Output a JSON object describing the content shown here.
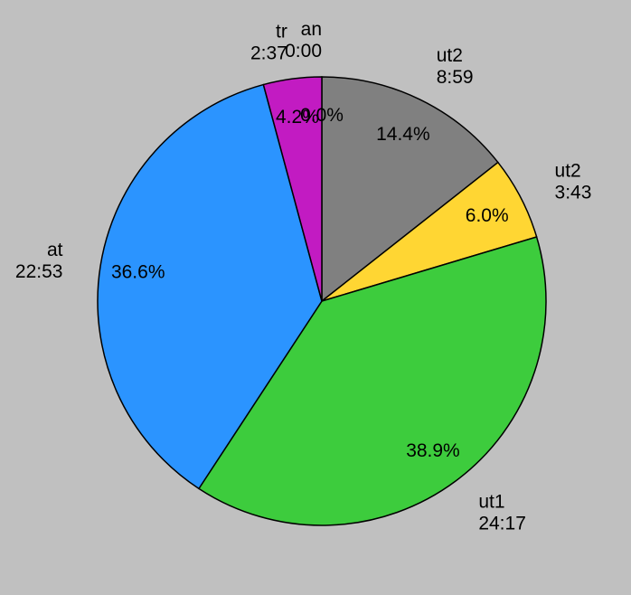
{
  "chart_data": {
    "type": "pie",
    "labels": [
      "an",
      "ut2",
      "ut2",
      "ut1",
      "at",
      "tr"
    ],
    "durations": [
      "0:00",
      "8:59",
      "3:43",
      "24:17",
      "22:53",
      "2:37"
    ],
    "values": [
      0.0,
      14.4,
      6.0,
      38.9,
      36.6,
      4.2
    ],
    "value_labels": [
      "0.0%",
      "14.4%",
      "6.0%",
      "38.9%",
      "36.6%",
      "4.2%"
    ],
    "colors": [
      "#808080",
      "#808080",
      "#ffd633",
      "#3dcc3d",
      "#2b94ff",
      "#c21bc2"
    ]
  }
}
